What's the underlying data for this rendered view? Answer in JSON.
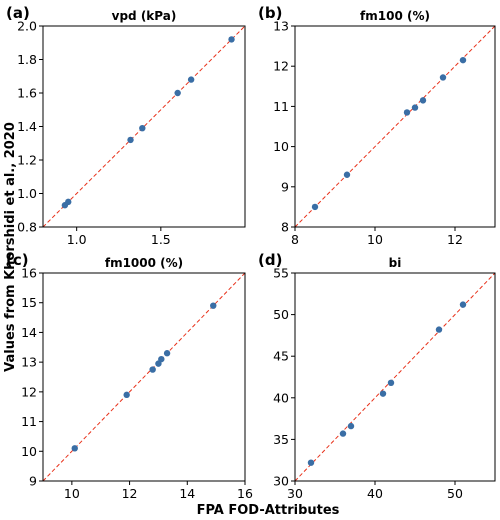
{
  "figure": {
    "xlabel": "FPA FOD-Attributes",
    "ylabel": "Values from Khorshidi et al., 2020",
    "point_color": "#3a6ea5",
    "line_color": "#e8311a"
  },
  "chart_data": [
    {
      "type": "scatter",
      "letter": "(a)",
      "title": "vpd (kPa)",
      "xlim": [
        0.8,
        2.0
      ],
      "ylim": [
        0.8,
        2.0
      ],
      "xticks": [
        "1.0",
        "1.5"
      ],
      "yticks": [
        "0.8",
        "1.0",
        "1.2",
        "1.4",
        "1.6",
        "1.8",
        "2.0"
      ],
      "reference_line": "y = x",
      "points": [
        {
          "x": 0.93,
          "y": 0.93
        },
        {
          "x": 0.95,
          "y": 0.95
        },
        {
          "x": 1.32,
          "y": 1.32
        },
        {
          "x": 1.39,
          "y": 1.39
        },
        {
          "x": 1.6,
          "y": 1.6
        },
        {
          "x": 1.68,
          "y": 1.68
        },
        {
          "x": 1.92,
          "y": 1.92
        }
      ]
    },
    {
      "type": "scatter",
      "letter": "(b)",
      "title": "fm100 (%)",
      "xlim": [
        8,
        13
      ],
      "ylim": [
        8,
        13
      ],
      "xticks": [
        "8",
        "10",
        "12"
      ],
      "yticks": [
        "8",
        "9",
        "10",
        "11",
        "12",
        "13"
      ],
      "reference_line": "y = x",
      "points": [
        {
          "x": 8.5,
          "y": 8.5
        },
        {
          "x": 9.3,
          "y": 9.3
        },
        {
          "x": 10.8,
          "y": 10.85
        },
        {
          "x": 11.0,
          "y": 10.97
        },
        {
          "x": 11.2,
          "y": 11.15
        },
        {
          "x": 11.7,
          "y": 11.72
        },
        {
          "x": 12.2,
          "y": 12.15
        }
      ]
    },
    {
      "type": "scatter",
      "letter": "(c)",
      "title": "fm1000 (%)",
      "xlim": [
        9,
        16
      ],
      "ylim": [
        9,
        16
      ],
      "xticks": [
        "10",
        "12",
        "14",
        "16"
      ],
      "yticks": [
        "9",
        "10",
        "11",
        "12",
        "13",
        "14",
        "15",
        "16"
      ],
      "reference_line": "y = x",
      "points": [
        {
          "x": 10.1,
          "y": 10.1
        },
        {
          "x": 11.9,
          "y": 11.9
        },
        {
          "x": 12.8,
          "y": 12.75
        },
        {
          "x": 13.0,
          "y": 12.95
        },
        {
          "x": 13.1,
          "y": 13.1
        },
        {
          "x": 13.3,
          "y": 13.3
        },
        {
          "x": 14.9,
          "y": 14.9
        }
      ]
    },
    {
      "type": "scatter",
      "letter": "(d)",
      "title": "bi",
      "xlim": [
        30,
        55
      ],
      "ylim": [
        30,
        55
      ],
      "xticks": [
        "30",
        "40",
        "50"
      ],
      "yticks": [
        "30",
        "35",
        "40",
        "45",
        "50",
        "55"
      ],
      "reference_line": "y = x",
      "points": [
        {
          "x": 32,
          "y": 32.2
        },
        {
          "x": 36,
          "y": 35.7
        },
        {
          "x": 37,
          "y": 36.6
        },
        {
          "x": 41,
          "y": 40.5
        },
        {
          "x": 42,
          "y": 41.8
        },
        {
          "x": 48,
          "y": 48.2
        },
        {
          "x": 51,
          "y": 51.2
        }
      ]
    }
  ]
}
